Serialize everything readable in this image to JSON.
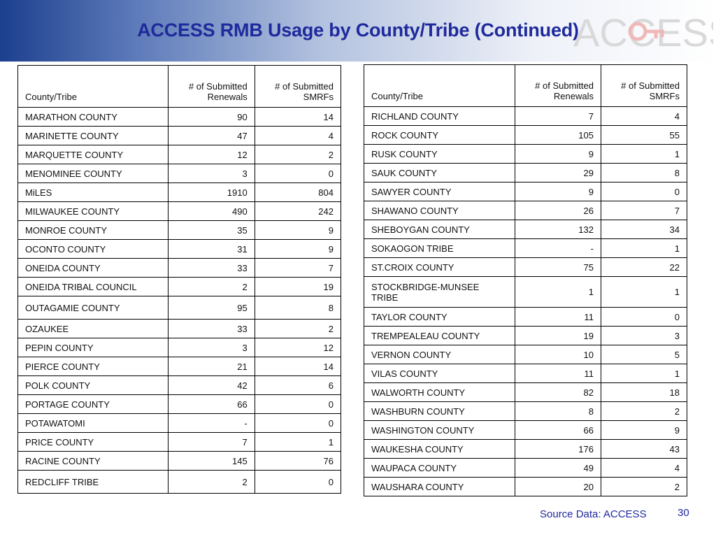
{
  "title": "ACCESS RMB Usage by County/Tribe (Continued)",
  "logo": {
    "text": "ACCESS",
    "icon": "key-icon",
    "color": "#d9d9d9"
  },
  "columns": {
    "name": "County/Tribe",
    "renewals": "# of Submitted Renewals",
    "smrfs_left": "# of Submitted SMRFs",
    "smrfs_right": "# of Submitted SMRFs"
  },
  "left_rows": [
    {
      "name": "MARATHON COUNTY",
      "renewals": "90",
      "smrfs": "14"
    },
    {
      "name": "MARINETTE COUNTY",
      "renewals": "47",
      "smrfs": "4"
    },
    {
      "name": "MARQUETTE COUNTY",
      "renewals": "12",
      "smrfs": "2"
    },
    {
      "name": "MENOMINEE COUNTY",
      "renewals": "3",
      "smrfs": "0"
    },
    {
      "name": "MiLES",
      "renewals": "1910",
      "smrfs": "804"
    },
    {
      "name": "MILWAUKEE COUNTY",
      "renewals": "490",
      "smrfs": "242"
    },
    {
      "name": "MONROE COUNTY",
      "renewals": "35",
      "smrfs": "9"
    },
    {
      "name": "OCONTO COUNTY",
      "renewals": "31",
      "smrfs": "9"
    },
    {
      "name": "ONEIDA COUNTY",
      "renewals": "33",
      "smrfs": "7"
    },
    {
      "name": "ONEIDA TRIBAL COUNCIL",
      "renewals": "2",
      "smrfs": "19"
    },
    {
      "name": "OUTAGAMIE COUNTY",
      "renewals": "95",
      "smrfs": "8"
    },
    {
      "name": "OZAUKEE",
      "renewals": "33",
      "smrfs": "2"
    },
    {
      "name": "PEPIN COUNTY",
      "renewals": "3",
      "smrfs": "12"
    },
    {
      "name": "PIERCE COUNTY",
      "renewals": "21",
      "smrfs": "14"
    },
    {
      "name": "POLK COUNTY",
      "renewals": "42",
      "smrfs": "6"
    },
    {
      "name": "PORTAGE COUNTY",
      "renewals": "66",
      "smrfs": "0"
    },
    {
      "name": "POTAWATOMI",
      "renewals": "-",
      "smrfs": "0"
    },
    {
      "name": "PRICE COUNTY",
      "renewals": "7",
      "smrfs": "1"
    },
    {
      "name": "RACINE COUNTY",
      "renewals": "145",
      "smrfs": "76"
    },
    {
      "name": "REDCLIFF TRIBE",
      "renewals": "2",
      "smrfs": "0"
    }
  ],
  "right_rows": [
    {
      "name": "RICHLAND COUNTY",
      "renewals": "7",
      "smrfs": "4"
    },
    {
      "name": "ROCK COUNTY",
      "renewals": "105",
      "smrfs": "55"
    },
    {
      "name": "RUSK COUNTY",
      "renewals": "9",
      "smrfs": "1"
    },
    {
      "name": "SAUK COUNTY",
      "renewals": "29",
      "smrfs": "8"
    },
    {
      "name": "SAWYER COUNTY",
      "renewals": "9",
      "smrfs": "0"
    },
    {
      "name": "SHAWANO COUNTY",
      "renewals": "26",
      "smrfs": "7"
    },
    {
      "name": "SHEBOYGAN COUNTY",
      "renewals": "132",
      "smrfs": "34"
    },
    {
      "name": "SOKAOGON TRIBE",
      "renewals": "-",
      "smrfs": "1"
    },
    {
      "name": "ST.CROIX COUNTY",
      "renewals": "75",
      "smrfs": "22"
    },
    {
      "name": "STOCKBRIDGE-MUNSEE TRIBE",
      "renewals": "1",
      "smrfs": "1"
    },
    {
      "name": "TAYLOR COUNTY",
      "renewals": "11",
      "smrfs": "0"
    },
    {
      "name": "TREMPEALEAU COUNTY",
      "renewals": "19",
      "smrfs": "3"
    },
    {
      "name": "VERNON COUNTY",
      "renewals": "10",
      "smrfs": "5"
    },
    {
      "name": "VILAS COUNTY",
      "renewals": "11",
      "smrfs": "1"
    },
    {
      "name": "WALWORTH COUNTY",
      "renewals": "82",
      "smrfs": "18"
    },
    {
      "name": "WASHBURN COUNTY",
      "renewals": "8",
      "smrfs": "2"
    },
    {
      "name": "WASHINGTON COUNTY",
      "renewals": "66",
      "smrfs": "9"
    },
    {
      "name": "WAUKESHA COUNTY",
      "renewals": "176",
      "smrfs": "43"
    },
    {
      "name": "WAUPACA COUNTY",
      "renewals": "49",
      "smrfs": "4"
    },
    {
      "name": "WAUSHARA COUNTY",
      "renewals": "20",
      "smrfs": "2"
    }
  ],
  "footer": {
    "source": "Source Data: ACCESS",
    "page_number": "30"
  }
}
